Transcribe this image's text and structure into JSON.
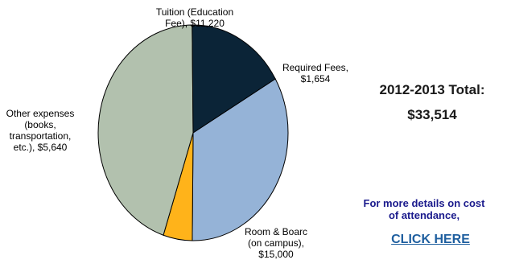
{
  "chart_data": {
    "type": "pie",
    "title": "",
    "slices": [
      {
        "label": "Tuition (Education\nFee),  $11,220",
        "value": 11220,
        "color": "#95b3d7"
      },
      {
        "label": "Required Fees,\n$1,654",
        "value": 1654,
        "color": "#ffb31a"
      },
      {
        "label": "Room & Boarc\n(on campus),\n$15,000",
        "value": 15000,
        "color": "#b2c1ae"
      },
      {
        "label": "Other expenses\n(books,\ntransportation,\netc.),  $5,640",
        "value": 5640,
        "color": "#0b2437"
      }
    ],
    "start_angle_deg": -30,
    "direction": "clockwise"
  },
  "summary": {
    "total_line1": "2012-2013 Total:",
    "total_line2": "$33,514"
  },
  "details": {
    "text": "For more details on cost\nof attendance,",
    "link_label": "CLICK HERE"
  }
}
